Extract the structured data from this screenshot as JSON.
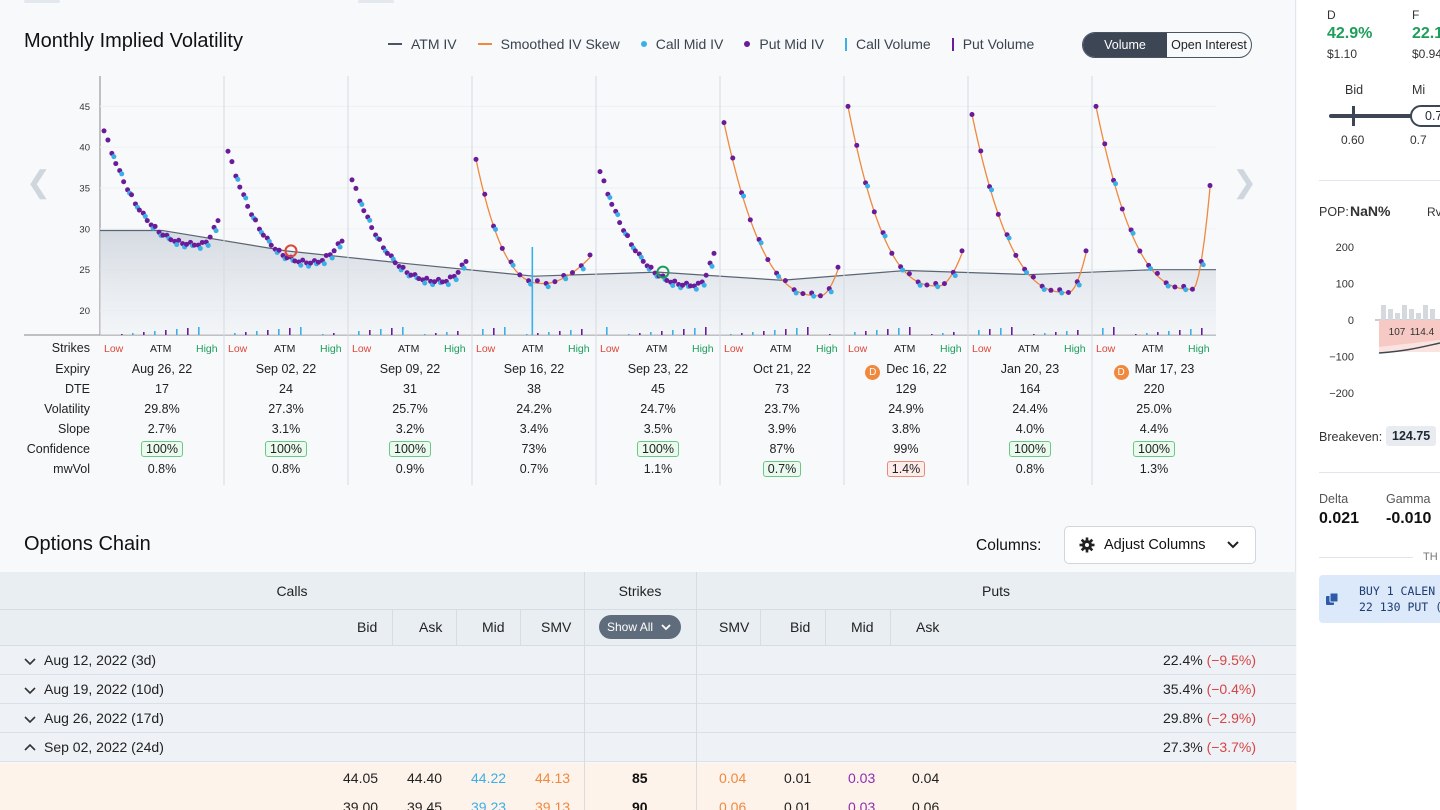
{
  "header": {
    "title": "Monthly Implied Volatility"
  },
  "legend": [
    {
      "label": "ATM IV",
      "kind": "line",
      "color": "#4a5563"
    },
    {
      "label": "Smoothed IV Skew",
      "kind": "line",
      "color": "#f0883e"
    },
    {
      "label": "Call Mid IV",
      "kind": "dot",
      "color": "#3ab0e8"
    },
    {
      "label": "Put Mid IV",
      "kind": "dot",
      "color": "#6a1b9a"
    },
    {
      "label": "Call Volume",
      "kind": "bar",
      "color": "#3ab0e8"
    },
    {
      "label": "Put Volume",
      "kind": "bar",
      "color": "#6a1b9a"
    }
  ],
  "toggle": {
    "volume": "Volume",
    "open_interest": "Open Interest"
  },
  "grid_rows": {
    "strikes": "Strikes",
    "expiry": "Expiry",
    "dte": "DTE",
    "volatility": "Volatility",
    "slope": "Slope",
    "confidence": "Confidence",
    "mwvol": "mwVol"
  },
  "strike_labels": {
    "low": "Low",
    "atm": "ATM",
    "high": "High"
  },
  "chart_data": {
    "type": "scatter",
    "ylim": [
      17,
      47
    ],
    "yticks": [
      20,
      25,
      30,
      35,
      40,
      45
    ],
    "expiries": [
      {
        "expiry": "Aug 26, 22",
        "dte": "17",
        "vol": "29.8%",
        "slope": "2.7%",
        "confidence": "100%",
        "conf_hl": true,
        "mwvol": "0.8%",
        "mw_hl": "",
        "badge": "",
        "atm": 29.8,
        "left_iv": 42,
        "min_iv": 28,
        "right_iv": 31,
        "tmin": 0.85,
        "smooth": false,
        "marker": ""
      },
      {
        "expiry": "Sep 02, 22",
        "dte": "24",
        "vol": "27.3%",
        "slope": "3.1%",
        "confidence": "100%",
        "conf_hl": true,
        "mwvol": "0.8%",
        "mw_hl": "",
        "badge": "",
        "atm": 27.3,
        "left_iv": 39.5,
        "min_iv": 25.8,
        "right_iv": 28.5,
        "tmin": 0.75,
        "smooth": false,
        "marker": "red"
      },
      {
        "expiry": "Sep 09, 22",
        "dte": "31",
        "vol": "25.7%",
        "slope": "3.2%",
        "confidence": "100%",
        "conf_hl": true,
        "mwvol": "0.9%",
        "mw_hl": "",
        "badge": "",
        "atm": 25.7,
        "left_iv": 36,
        "min_iv": 23.5,
        "right_iv": 26,
        "tmin": 0.8,
        "smooth": false,
        "marker": ""
      },
      {
        "expiry": "Sep 16, 22",
        "dte": "38",
        "vol": "24.2%",
        "slope": "3.4%",
        "confidence": "73%",
        "conf_hl": false,
        "mwvol": "0.7%",
        "mw_hl": "",
        "badge": "",
        "atm": 24.2,
        "left_iv": 38.5,
        "min_iv": 23.3,
        "right_iv": 26.5,
        "tmin": 0.6,
        "smooth": true,
        "marker": ""
      },
      {
        "expiry": "Sep 23, 22",
        "dte": "45",
        "vol": "24.7%",
        "slope": "3.5%",
        "confidence": "100%",
        "conf_hl": true,
        "mwvol": "1.1%",
        "mw_hl": "",
        "badge": "",
        "atm": 24.7,
        "left_iv": 37,
        "min_iv": 23,
        "right_iv": 27,
        "tmin": 0.85,
        "smooth": false,
        "marker": "green"
      },
      {
        "expiry": "Oct 21, 22",
        "dte": "73",
        "vol": "23.7%",
        "slope": "3.9%",
        "confidence": "87%",
        "conf_hl": false,
        "mwvol": "0.7%",
        "mw_hl": "green",
        "badge": "",
        "atm": 23.7,
        "left_iv": 43,
        "min_iv": 21.8,
        "right_iv": 25,
        "tmin": 0.85,
        "smooth": true,
        "marker": ""
      },
      {
        "expiry": "Dec 16, 22",
        "dte": "129",
        "vol": "24.9%",
        "slope": "3.8%",
        "confidence": "99%",
        "conf_hl": false,
        "mwvol": "1.4%",
        "mw_hl": "red",
        "badge": "D",
        "atm": 24.9,
        "left_iv": 45,
        "min_iv": 23,
        "right_iv": 27,
        "tmin": 0.8,
        "smooth": true,
        "marker": ""
      },
      {
        "expiry": "Jan 20, 23",
        "dte": "164",
        "vol": "24.4%",
        "slope": "4.0%",
        "confidence": "100%",
        "conf_hl": true,
        "mwvol": "0.8%",
        "mw_hl": "",
        "badge": "",
        "atm": 24.4,
        "left_iv": 44,
        "min_iv": 22.2,
        "right_iv": 27,
        "tmin": 0.85,
        "smooth": true,
        "marker": ""
      },
      {
        "expiry": "Mar 17, 23",
        "dte": "220",
        "vol": "25.0%",
        "slope": "4.4%",
        "confidence": "100%",
        "conf_hl": true,
        "mwvol": "1.3%",
        "mw_hl": "",
        "badge": "D",
        "atm": 25.0,
        "left_iv": 45,
        "min_iv": 22.6,
        "right_iv": 35,
        "tmin": 0.85,
        "smooth": true,
        "marker": ""
      }
    ]
  },
  "options_chain": {
    "title": "Options Chain",
    "columns_label": "Columns:",
    "adjust_label": "Adjust Columns",
    "calls": "Calls",
    "strikes": "Strikes",
    "puts": "Puts",
    "call_cols": [
      "Bid",
      "Ask",
      "Mid",
      "SMV"
    ],
    "put_cols": [
      "SMV",
      "Bid",
      "Mid",
      "Ask"
    ],
    "show_all": "Show All",
    "expiries": [
      {
        "label": "Aug 12, 2022 (3d)",
        "iv": "22.4%",
        "chg": "(−9.5%)",
        "expanded": false
      },
      {
        "label": "Aug 19, 2022 (10d)",
        "iv": "35.4%",
        "chg": "(−0.4%)",
        "expanded": false
      },
      {
        "label": "Aug 26, 2022 (17d)",
        "iv": "29.8%",
        "chg": "(−2.9%)",
        "expanded": false
      },
      {
        "label": "Sep 02, 2022 (24d)",
        "iv": "27.3%",
        "chg": "(−3.7%)",
        "expanded": true
      }
    ],
    "rows": [
      {
        "c_bid": "44.05",
        "c_ask": "44.40",
        "c_mid": "44.22",
        "c_smv": "44.13",
        "strike": "85",
        "p_smv": "0.04",
        "p_bid": "0.01",
        "p_mid": "0.03",
        "p_ask": "0.04"
      },
      {
        "c_bid": "39.00",
        "c_ask": "39.45",
        "c_mid": "39.23",
        "c_smv": "39.13",
        "strike": "90",
        "p_smv": "0.06",
        "p_bid": "0.01",
        "p_mid": "0.03",
        "p_ask": "0.06"
      }
    ]
  },
  "side": {
    "d_label": "D",
    "d_value": "42.9%",
    "d_price": "$1.10",
    "f_label": "F",
    "f_value": "22.1",
    "f_price": "$0.94",
    "bid_label": "Bid",
    "mid_label": "Mi",
    "slider_value": "0.7",
    "bid_low": "0.60",
    "bid_high": "0.7",
    "pop_label": "POP:",
    "pop_value": "NaN%",
    "rv_label": "Rv",
    "pnl_ticks": [
      "200",
      "100",
      "0",
      "−100",
      "−200"
    ],
    "pnl_x": [
      "107",
      "114.4"
    ],
    "breakeven_label": "Breakeven:",
    "breakeven_value": "124.75",
    "delta_label": "Delta",
    "delta_value": "0.021",
    "gamma_label": "Gamma",
    "gamma_value": "-0.010",
    "th_label": "TH",
    "order_line1": "BUY 1 CALEN",
    "order_line2": "22 130 PUT ("
  }
}
